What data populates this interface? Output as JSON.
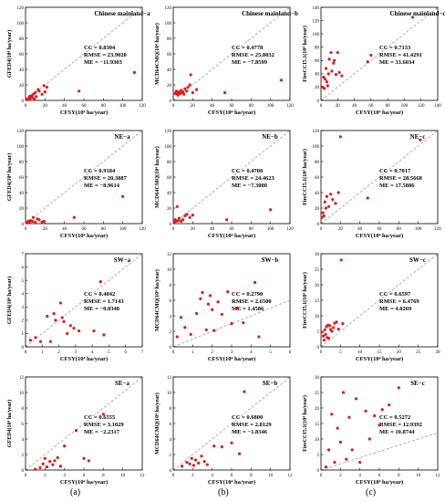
{
  "colors": {
    "point": "#e31a1c",
    "axis": "#000000",
    "diagonal": "#9e9e9e"
  },
  "column_labels": [
    "(a)",
    "(b)",
    "(c)"
  ],
  "chart_data": [
    {
      "type": "scatter",
      "panel": "Chinese mainland−a",
      "xlabel": "CFSY(10⁴ ha/year)",
      "ylabel": "GFED4(10⁴ ha/year)",
      "xlim": [
        0,
        120
      ],
      "ylim": [
        0,
        120
      ],
      "xticks": [
        0,
        20,
        40,
        60,
        80,
        100,
        120
      ],
      "yticks": [
        0,
        20,
        40,
        60,
        80,
        100,
        120
      ],
      "stats": [
        "CC = 0.8304",
        "RMSE = 23.9020",
        "ME = −11.9303"
      ],
      "x": [
        1,
        2,
        3,
        4,
        4,
        5,
        6,
        7,
        8,
        9,
        10,
        11,
        13,
        14,
        17,
        19,
        20,
        22,
        55,
        112
      ],
      "y": [
        1,
        2,
        2,
        5,
        1,
        3,
        6,
        4,
        8,
        2,
        10,
        5,
        14,
        12,
        8,
        19,
        11,
        17,
        12,
        36
      ]
    },
    {
      "type": "scatter",
      "panel": "Chinese mainland−b",
      "xlabel": "CFSY(10⁴ ha/year)",
      "ylabel": "MCD64CMQ(10⁴ ha/year)",
      "xlim": [
        0,
        120
      ],
      "ylim": [
        0,
        120
      ],
      "xticks": [
        0,
        20,
        40,
        60,
        80,
        100,
        120
      ],
      "yticks": [
        0,
        20,
        40,
        60,
        80,
        100,
        120
      ],
      "stats": [
        "CC = 0.4778",
        "RMSE = 25.8032",
        "ME = −7.8599"
      ],
      "x": [
        2,
        3,
        4,
        5,
        5,
        6,
        7,
        8,
        9,
        10,
        11,
        12,
        14,
        15,
        17,
        18,
        20,
        24,
        53,
        111
      ],
      "y": [
        9,
        12,
        8,
        11,
        7,
        10,
        9,
        13,
        10,
        11,
        8,
        15,
        12,
        17,
        20,
        33,
        10,
        14,
        10,
        26
      ]
    },
    {
      "type": "scatter",
      "panel": "Chinese mainland−c",
      "xlabel": "CFSY(10⁴ ha/year)",
      "ylabel": "FireCCI5.1(10⁴ ha/year)",
      "xlim": [
        0,
        140
      ],
      "ylim": [
        0,
        140
      ],
      "xticks": [
        0,
        20,
        40,
        60,
        80,
        100,
        120,
        140
      ],
      "yticks": [
        0,
        20,
        40,
        60,
        80,
        100,
        120,
        140
      ],
      "stats": [
        "CC = 0.7133",
        "RMSE = 41.4291",
        "ME = 33.6034"
      ],
      "x": [
        2,
        3,
        4,
        5,
        6,
        7,
        8,
        9,
        10,
        12,
        13,
        15,
        16,
        18,
        20,
        22,
        25,
        56,
        60,
        110
      ],
      "y": [
        20,
        35,
        18,
        32,
        48,
        28,
        22,
        40,
        62,
        72,
        44,
        56,
        60,
        39,
        72,
        42,
        37,
        58,
        68,
        125
      ]
    },
    {
      "type": "scatter",
      "panel": "NE−a",
      "xlabel": "CFSY(10⁴ ha/year)",
      "ylabel": "GFED4(10⁴ ha/year)",
      "xlim": [
        0,
        120
      ],
      "ylim": [
        0,
        120
      ],
      "xticks": [
        0,
        20,
        40,
        60,
        80,
        100,
        120
      ],
      "yticks": [
        0,
        20,
        40,
        60,
        80,
        100,
        120
      ],
      "stats": [
        "CC = 0.9184",
        "RMSE = 20.3887",
        "ME = −8.9614"
      ],
      "x": [
        1,
        2,
        3,
        4,
        5,
        7,
        8,
        10,
        12,
        14,
        17,
        19,
        50,
        100
      ],
      "y": [
        1,
        2,
        3,
        1,
        4,
        3,
        8,
        2,
        6,
        5,
        2,
        3,
        8,
        35
      ]
    },
    {
      "type": "scatter",
      "panel": "NE−b",
      "xlabel": "CFSY(10⁴ ha/year)",
      "ylabel": "MCD64CMQ(10⁴ ha/year)",
      "xlim": [
        0,
        120
      ],
      "ylim": [
        0,
        120
      ],
      "xticks": [
        0,
        20,
        40,
        60,
        80,
        100,
        120
      ],
      "yticks": [
        0,
        20,
        40,
        60,
        80,
        100,
        120
      ],
      "stats": [
        "CC = 0.4700",
        "RMSE = 24.4623",
        "ME = −7.3080"
      ],
      "x": [
        1,
        2,
        3,
        4,
        5,
        6,
        8,
        10,
        12,
        14,
        17,
        20,
        55,
        100
      ],
      "y": [
        2,
        5,
        3,
        22,
        4,
        7,
        3,
        5,
        10,
        12,
        8,
        11,
        5,
        18
      ]
    },
    {
      "type": "scatter",
      "panel": "NE−c",
      "xlabel": "CFSY(10⁴ ha/year)",
      "ylabel": "FireCCI5.1(10⁴ ha/year)",
      "xlim": [
        0,
        120
      ],
      "ylim": [
        0,
        120
      ],
      "xticks": [
        0,
        20,
        40,
        60,
        80,
        100,
        120
      ],
      "yticks": [
        0,
        20,
        40,
        60,
        80,
        100,
        120
      ],
      "stats": [
        "CC = 0.7017",
        "RMSE = 28.5668",
        "ME = 17.5886"
      ],
      "x": [
        1,
        2,
        3,
        4,
        5,
        6,
        8,
        10,
        12,
        15,
        18,
        20,
        48,
        102
      ],
      "y": [
        8,
        14,
        10,
        28,
        20,
        35,
        22,
        38,
        31,
        26,
        40,
        112,
        33,
        108
      ]
    },
    {
      "type": "scatter",
      "panel": "SW−a",
      "xlabel": "CFSY(10⁴ ha/year)",
      "ylabel": "GFED4(10⁴ ha/year)",
      "xlim": [
        0,
        7
      ],
      "ylim": [
        0,
        7
      ],
      "xticks": [
        0,
        1,
        2,
        3,
        4,
        5,
        6,
        7
      ],
      "yticks": [
        0,
        1,
        2,
        3,
        4,
        5,
        6,
        7
      ],
      "stats": [
        "CC = 0.4042",
        "RMSE = 1.7143",
        "ME = −0.8348"
      ],
      "x": [
        0.3,
        0.6,
        0.9,
        1.3,
        1.5,
        1.7,
        1.8,
        2.1,
        2.2,
        2.3,
        2.5,
        2.7,
        2.9,
        3.2,
        4.1,
        4.5,
        4.7
      ],
      "y": [
        0.5,
        0.7,
        0.4,
        2.3,
        0.4,
        2.5,
        2.0,
        3.3,
        2.2,
        1.9,
        1.0,
        1.6,
        1.4,
        1.2,
        1.2,
        4.9,
        0.9
      ]
    },
    {
      "type": "scatter",
      "panel": "SW−b",
      "xlabel": "CFSY(10⁴ ha/year)",
      "ylabel": "MCD64CMQ(10⁴ ha/year)",
      "xlim": [
        0,
        6
      ],
      "ylim": [
        0,
        12
      ],
      "xticks": [
        0,
        1,
        2,
        3,
        4,
        5,
        6
      ],
      "yticks": [
        0,
        2,
        4,
        6,
        8,
        10,
        12
      ],
      "stats": [
        "CC = 0.2790",
        "RMSE = 2.6500",
        "ME = 1.4586"
      ],
      "x": [
        0.2,
        0.4,
        0.6,
        0.9,
        1.2,
        1.4,
        1.5,
        1.7,
        1.8,
        1.9,
        2.0,
        2.1,
        2.3,
        2.5,
        2.8,
        3.0,
        3.3,
        3.6,
        4.2,
        4.4
      ],
      "y": [
        1.3,
        3.8,
        2.5,
        1.6,
        4.3,
        6.2,
        7.0,
        2.2,
        5.5,
        6.6,
        4.8,
        2.1,
        5.8,
        4.2,
        7.1,
        3.0,
        5.0,
        3.1,
        8.3,
        1.3
      ]
    },
    {
      "type": "scatter",
      "panel": "SW−c",
      "xlabel": "CFSY(10⁴ ha/year)",
      "ylabel": "FireCCI5.1(10⁴ ha/year)",
      "xlim": [
        0,
        30
      ],
      "ylim": [
        0,
        30
      ],
      "xticks": [
        0,
        5,
        10,
        15,
        20,
        25,
        30
      ],
      "yticks": [
        0,
        5,
        10,
        15,
        20,
        25,
        30
      ],
      "stats": [
        "CC = 0.6597",
        "RMSE = 6.4769",
        "ME = 4.0269"
      ],
      "x": [
        0.3,
        0.6,
        0.8,
        1.0,
        1.2,
        1.4,
        1.6,
        1.8,
        2.0,
        2.3,
        2.5,
        2.8,
        3.2,
        3.5,
        4.0,
        4.5,
        5.2,
        5.6
      ],
      "y": [
        4.8,
        3.5,
        2.2,
        5.5,
        4.0,
        6.5,
        3.0,
        7.0,
        2.8,
        6.8,
        5.6,
        5.0,
        6.2,
        7.6,
        8.0,
        5.7,
        28.0,
        7.5
      ]
    },
    {
      "type": "scatter",
      "panel": "SE−a",
      "xlabel": "CFSY(10⁴ ha/year)",
      "ylabel": "GFED4(10⁴ ha/year)",
      "xlim": [
        0,
        12
      ],
      "ylim": [
        0,
        12
      ],
      "xticks": [
        0,
        2,
        4,
        6,
        8,
        10,
        12
      ],
      "yticks": [
        0,
        2,
        4,
        6,
        8,
        10,
        12
      ],
      "stats": [
        "CC = 0.6555",
        "RMSE = 3.1029",
        "ME = −2.2317"
      ],
      "x": [
        1.0,
        1.5,
        1.8,
        2.0,
        2.2,
        2.5,
        2.8,
        3.0,
        3.3,
        3.6,
        4.0,
        5.2,
        6.0,
        6.5,
        8.0
      ],
      "y": [
        0.1,
        0.3,
        0.8,
        1.5,
        0.4,
        1.1,
        0.7,
        1.2,
        1.6,
        0.5,
        3.1,
        5.1,
        1.5,
        1.2,
        7.2
      ]
    },
    {
      "type": "scatter",
      "panel": "SE−b",
      "xlabel": "CFSY(10⁴ ha/year)",
      "ylabel": "MCD64CMQ(10⁴ ha/year)",
      "xlim": [
        0,
        12
      ],
      "ylim": [
        0,
        12
      ],
      "xticks": [
        0,
        2,
        4,
        6,
        8,
        10,
        12
      ],
      "yticks": [
        0,
        2,
        4,
        6,
        8,
        10,
        12
      ],
      "stats": [
        "CC = 0.6800",
        "RMSE = 2.8129",
        "ME = −1.8346"
      ],
      "x": [
        0.9,
        1.4,
        1.7,
        1.9,
        2.1,
        2.3,
        2.6,
        2.9,
        3.2,
        3.5,
        4.2,
        5.0,
        6.0,
        6.8,
        7.3
      ],
      "y": [
        0.5,
        1.0,
        0.8,
        1.5,
        0.6,
        1.3,
        0.9,
        1.8,
        1.1,
        0.7,
        3.1,
        3.0,
        3.5,
        2.1,
        10.1
      ]
    },
    {
      "type": "scatter",
      "panel": "SE−c",
      "xlabel": "CFSY(10⁴ ha/year)",
      "ylabel": "FireCCI5.1(10⁴ ha/year)",
      "xlim": [
        0,
        12
      ],
      "ylim": [
        0,
        30
      ],
      "xticks": [
        0,
        2,
        4,
        6,
        8,
        10,
        12
      ],
      "yticks": [
        0,
        5,
        10,
        15,
        20,
        25,
        30
      ],
      "stats": [
        "CC = 0.5272",
        "RMSE = 12.9392",
        "ME = 10.8744"
      ],
      "x": [
        0.5,
        0.8,
        1.1,
        1.4,
        1.7,
        2.0,
        2.3,
        2.6,
        2.9,
        3.2,
        3.6,
        4.0,
        4.6,
        5.0,
        5.5,
        6.0,
        6.3,
        7.0,
        8.0
      ],
      "y": [
        1.0,
        6.5,
        18.0,
        2.5,
        13.5,
        9.0,
        25.0,
        3.5,
        17.0,
        6.5,
        23.0,
        2.5,
        19.0,
        10.0,
        17.5,
        14.5,
        19.5,
        21.0,
        26.5
      ]
    }
  ]
}
